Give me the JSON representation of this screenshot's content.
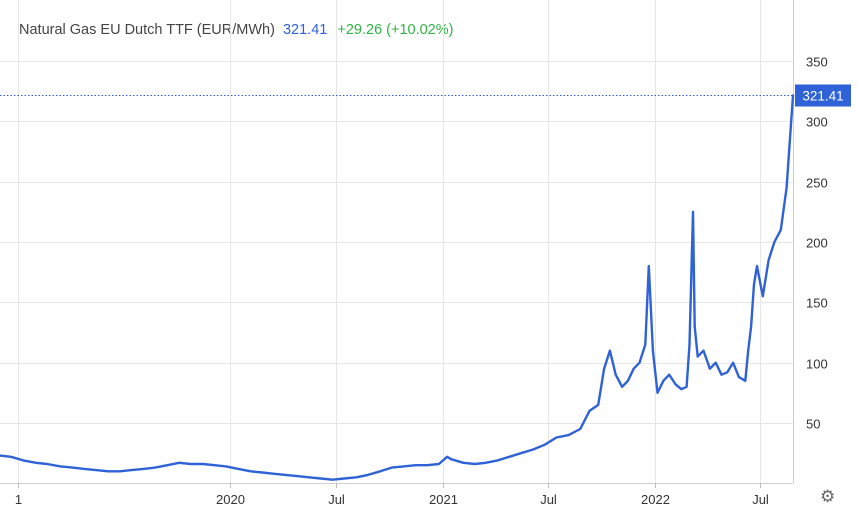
{
  "legend": {
    "name": "Natural Gas EU Dutch TTF (EUR/MWh)",
    "last": "321.41",
    "change": "+29.26 (+10.02%)"
  },
  "colors": {
    "line": "#2f62d6",
    "grid": "#e6e6e6",
    "price_tag_bg": "#2f62d6",
    "change_positive": "#2fb344"
  },
  "icons": {
    "settings": "gear-icon"
  },
  "chart_data": {
    "type": "line",
    "title": "Natural Gas EU Dutch TTF (EUR/MWh)",
    "xlabel": "",
    "ylabel": "",
    "ylim": [
      0,
      360
    ],
    "xlim": [
      "2018-12-01",
      "2022-08-26"
    ],
    "grid": true,
    "yticks": [
      50,
      100,
      150,
      200,
      250,
      300,
      350
    ],
    "ytick_labels": [
      "50",
      "100",
      "150",
      "200",
      "250",
      "300",
      "350"
    ],
    "xticks": [
      "2019-01-01",
      "2020-01-01",
      "2020-07-01",
      "2021-01-01",
      "2021-07-01",
      "2022-01-01",
      "2022-07-01"
    ],
    "xtick_labels": [
      "1",
      "2020",
      "Jul",
      "2021",
      "Jul",
      "2022",
      "Jul"
    ],
    "last_value": 321.41,
    "last_value_label": "321.41",
    "series": [
      {
        "x": [
          "2018-12-01",
          "2018-12-20",
          "2019-01-10",
          "2019-02-01",
          "2019-02-20",
          "2019-03-15",
          "2019-04-05",
          "2019-04-25",
          "2019-05-15",
          "2019-06-05",
          "2019-06-25",
          "2019-07-15",
          "2019-08-05",
          "2019-08-25",
          "2019-09-15",
          "2019-10-05",
          "2019-10-25",
          "2019-11-15",
          "2019-12-05",
          "2019-12-25",
          "2020-01-15",
          "2020-02-05",
          "2020-02-25",
          "2020-03-15",
          "2020-04-05",
          "2020-04-25",
          "2020-05-15",
          "2020-06-05",
          "2020-06-25",
          "2020-07-15",
          "2020-08-05",
          "2020-08-25",
          "2020-09-15",
          "2020-10-05",
          "2020-10-25",
          "2020-11-15",
          "2020-12-05",
          "2020-12-25",
          "2021-01-08",
          "2021-01-15",
          "2021-02-05",
          "2021-02-25",
          "2021-03-15",
          "2021-04-05",
          "2021-04-25",
          "2021-05-15",
          "2021-06-05",
          "2021-06-25",
          "2021-07-15",
          "2021-08-05",
          "2021-08-25",
          "2021-09-10",
          "2021-09-25",
          "2021-10-05",
          "2021-10-15",
          "2021-10-25",
          "2021-11-05",
          "2021-11-15",
          "2021-11-25",
          "2021-12-05",
          "2021-12-15",
          "2021-12-21",
          "2021-12-28",
          "2022-01-05",
          "2022-01-15",
          "2022-01-25",
          "2022-02-05",
          "2022-02-15",
          "2022-02-24",
          "2022-03-01",
          "2022-03-07",
          "2022-03-10",
          "2022-03-15",
          "2022-03-25",
          "2022-04-05",
          "2022-04-15",
          "2022-04-25",
          "2022-05-05",
          "2022-05-15",
          "2022-05-25",
          "2022-06-05",
          "2022-06-10",
          "2022-06-15",
          "2022-06-20",
          "2022-06-25",
          "2022-07-05",
          "2022-07-15",
          "2022-07-25",
          "2022-08-05",
          "2022-08-15",
          "2022-08-20",
          "2022-08-26"
        ],
        "values": [
          23,
          22,
          19,
          17,
          16,
          14,
          13,
          12,
          11,
          10,
          10,
          11,
          12,
          13,
          15,
          17,
          16,
          16,
          15,
          14,
          12,
          10,
          9,
          8,
          7,
          6,
          5,
          4,
          3,
          4,
          5,
          7,
          10,
          13,
          14,
          15,
          15,
          16,
          22,
          20,
          17,
          16,
          17,
          19,
          22,
          25,
          28,
          32,
          38,
          40,
          45,
          60,
          65,
          95,
          110,
          90,
          80,
          85,
          95,
          100,
          115,
          180,
          110,
          75,
          85,
          90,
          82,
          78,
          80,
          115,
          225,
          130,
          105,
          110,
          95,
          100,
          90,
          92,
          100,
          88,
          85,
          110,
          130,
          165,
          180,
          155,
          185,
          200,
          210,
          245,
          280,
          321.41
        ]
      }
    ]
  }
}
